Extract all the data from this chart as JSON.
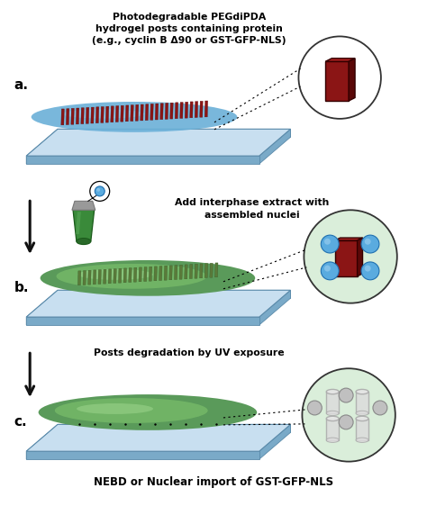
{
  "text_a": "Photodegradable PEGdiPDA\nhydrogel posts containing protein\n(e.g., cyclin B Δ90 or GST-GFP-NLS)",
  "text_b": "Add interphase extract with\nassembled nuclei",
  "text_c": "Posts degradation by UV exposure",
  "text_bottom": "NEBD or Nuclear import of GST-GFP-NLS",
  "bg_color": "#ffffff",
  "slide_face": "#c8dff0",
  "slide_side": "#7aaac8",
  "slide_edge": "#5a8aaa",
  "gel_blue": "#6ab0d8",
  "gel_green_outer": "#5a9a5a",
  "gel_green_inner": "#7abf6a",
  "gel_green_highlight": "#a0d890",
  "post_red": "#8b1515",
  "post_red_top": "#aa2020",
  "post_red_side": "#5a0808",
  "post_green": "#5a7a3a",
  "post_green_dark": "#3a5a2a",
  "circle_bg_a": "#ffffff",
  "circle_bg_bc": "#daeeda",
  "circle_border": "#333333",
  "nucleus_blue": "#5aabdf",
  "nucleus_highlight": "#9fd0f0",
  "arrow_color": "#111111",
  "tube_body": "#3a8a3a",
  "tube_cap": "#999999",
  "tube_highlight": "#5aaa5a",
  "cyl_face": "#dcdcdc",
  "cyl_edge": "#aaaaaa",
  "cyl_top": "#e8e8e8"
}
